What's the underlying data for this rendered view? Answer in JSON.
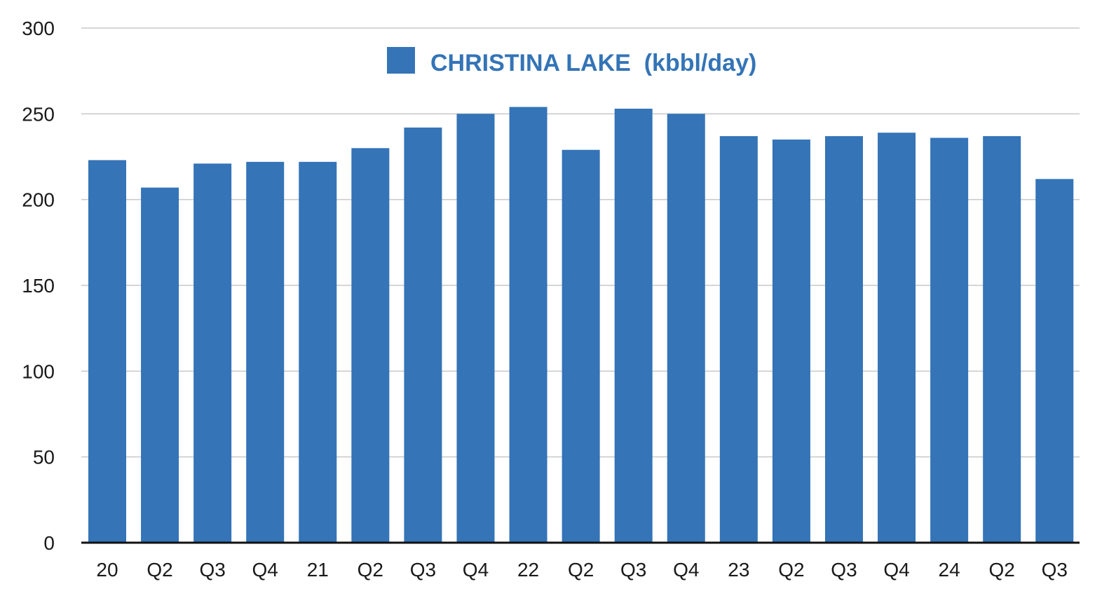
{
  "chart_data": {
    "type": "bar",
    "categories": [
      "20",
      "Q2",
      "Q3",
      "Q4",
      "21",
      "Q2",
      "Q3",
      "Q4",
      "22",
      "Q2",
      "Q3",
      "Q4",
      "23",
      "Q2",
      "Q3",
      "Q4",
      "24",
      "Q2",
      "Q3"
    ],
    "series": [
      {
        "name": "CHRISTINA LAKE  (kbbl/day)",
        "color": "#3474b7",
        "values": [
          223,
          207,
          221,
          222,
          222,
          230,
          242,
          250,
          254,
          229,
          253,
          250,
          237,
          235,
          237,
          239,
          236,
          237,
          212
        ]
      }
    ],
    "title": "",
    "xlabel": "",
    "ylabel": "",
    "ylim": [
      0,
      300
    ],
    "yticks": [
      0,
      50,
      100,
      150,
      200,
      250,
      300
    ],
    "grid": true,
    "legend_position": "top-center",
    "colors": {
      "bar": "#3474b7",
      "grid": "#c8c8c8",
      "axis": "#111111",
      "legend_text": "#3474b7"
    }
  }
}
